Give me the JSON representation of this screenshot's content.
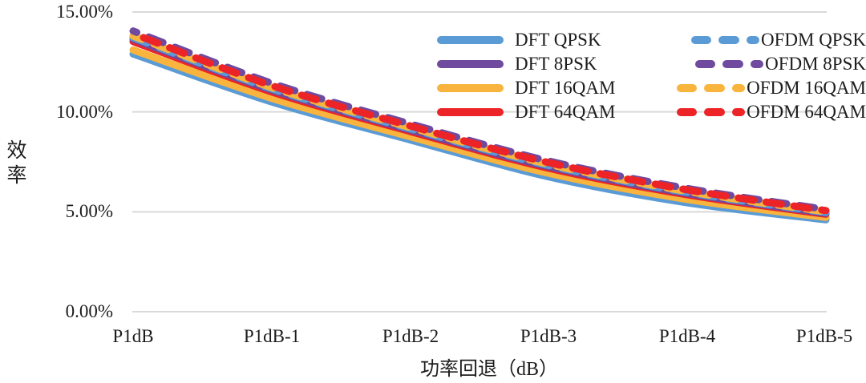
{
  "axes": {
    "y_title": "效率",
    "x_title": "功率回退（dB）",
    "y_tick_labels": [
      "15.00%",
      "10.00%",
      "5.00%",
      "0.00%"
    ]
  },
  "colors": {
    "blue": "#5B9BD5",
    "purple": "#6F4A9F",
    "yellow": "#F8B43C",
    "red": "#EC2427",
    "gridline": "#D9D9D9"
  },
  "chart_data": {
    "type": "line",
    "title": "",
    "xlabel": "功率回退（dB）",
    "ylabel": "效率",
    "ylim": [
      0,
      15
    ],
    "y_tick_values": [
      15,
      10,
      5,
      0
    ],
    "y_tick_labels": [
      "15.00%",
      "10.00%",
      "5.00%",
      "0.00%"
    ],
    "grid": true,
    "legend_position": "top-right-inside, two columns",
    "categories": [
      "P1dB",
      "P1dB-1",
      "P1dB-2",
      "P1dB-3",
      "P1dB-4",
      "P1dB-5"
    ],
    "units": "percent",
    "series": [
      {
        "name": "DFT QPSK",
        "style": "solid",
        "color": "#5B9BD5",
        "values": [
          12.9,
          10.5,
          8.6,
          6.75,
          5.45,
          4.6
        ]
      },
      {
        "name": "DFT 8PSK",
        "style": "solid",
        "color": "#6F4A9F",
        "values": [
          13.65,
          11.1,
          9.1,
          7.26,
          5.92,
          4.93
        ]
      },
      {
        "name": "DFT 16QAM",
        "style": "solid",
        "color": "#F8B43C",
        "values": [
          13.1,
          10.68,
          8.76,
          6.93,
          5.62,
          4.72
        ]
      },
      {
        "name": "DFT 64QAM",
        "style": "solid",
        "color": "#EC2427",
        "values": [
          13.52,
          11.0,
          9.02,
          7.18,
          5.85,
          4.88
        ]
      },
      {
        "name": "OFDM QPSK",
        "style": "dashed",
        "color": "#5B9BD5",
        "values": [
          13.72,
          11.16,
          9.16,
          7.32,
          5.97,
          4.97
        ]
      },
      {
        "name": "OFDM 8PSK",
        "style": "dashed",
        "color": "#6F4A9F",
        "values": [
          14.05,
          11.44,
          9.4,
          7.54,
          6.17,
          5.12
        ]
      },
      {
        "name": "OFDM 16QAM",
        "style": "dashed",
        "color": "#F8B43C",
        "values": [
          13.8,
          11.22,
          9.22,
          7.38,
          6.02,
          5.0
        ]
      },
      {
        "name": "OFDM 64QAM",
        "style": "dashed",
        "color": "#EC2427",
        "values": [
          13.92,
          11.32,
          9.3,
          7.46,
          6.1,
          5.06
        ]
      }
    ],
    "draw_order": [
      "DFT QPSK",
      "DFT 16QAM",
      "DFT 64QAM",
      "DFT 8PSK",
      "OFDM QPSK",
      "OFDM 16QAM",
      "OFDM 8PSK",
      "OFDM 64QAM"
    ],
    "legend_columns": [
      [
        "DFT QPSK",
        "DFT 8PSK",
        "DFT 16QAM",
        "DFT 64QAM"
      ],
      [
        "OFDM QPSK",
        "OFDM 8PSK",
        "OFDM 16QAM",
        "OFDM 64QAM"
      ]
    ]
  }
}
